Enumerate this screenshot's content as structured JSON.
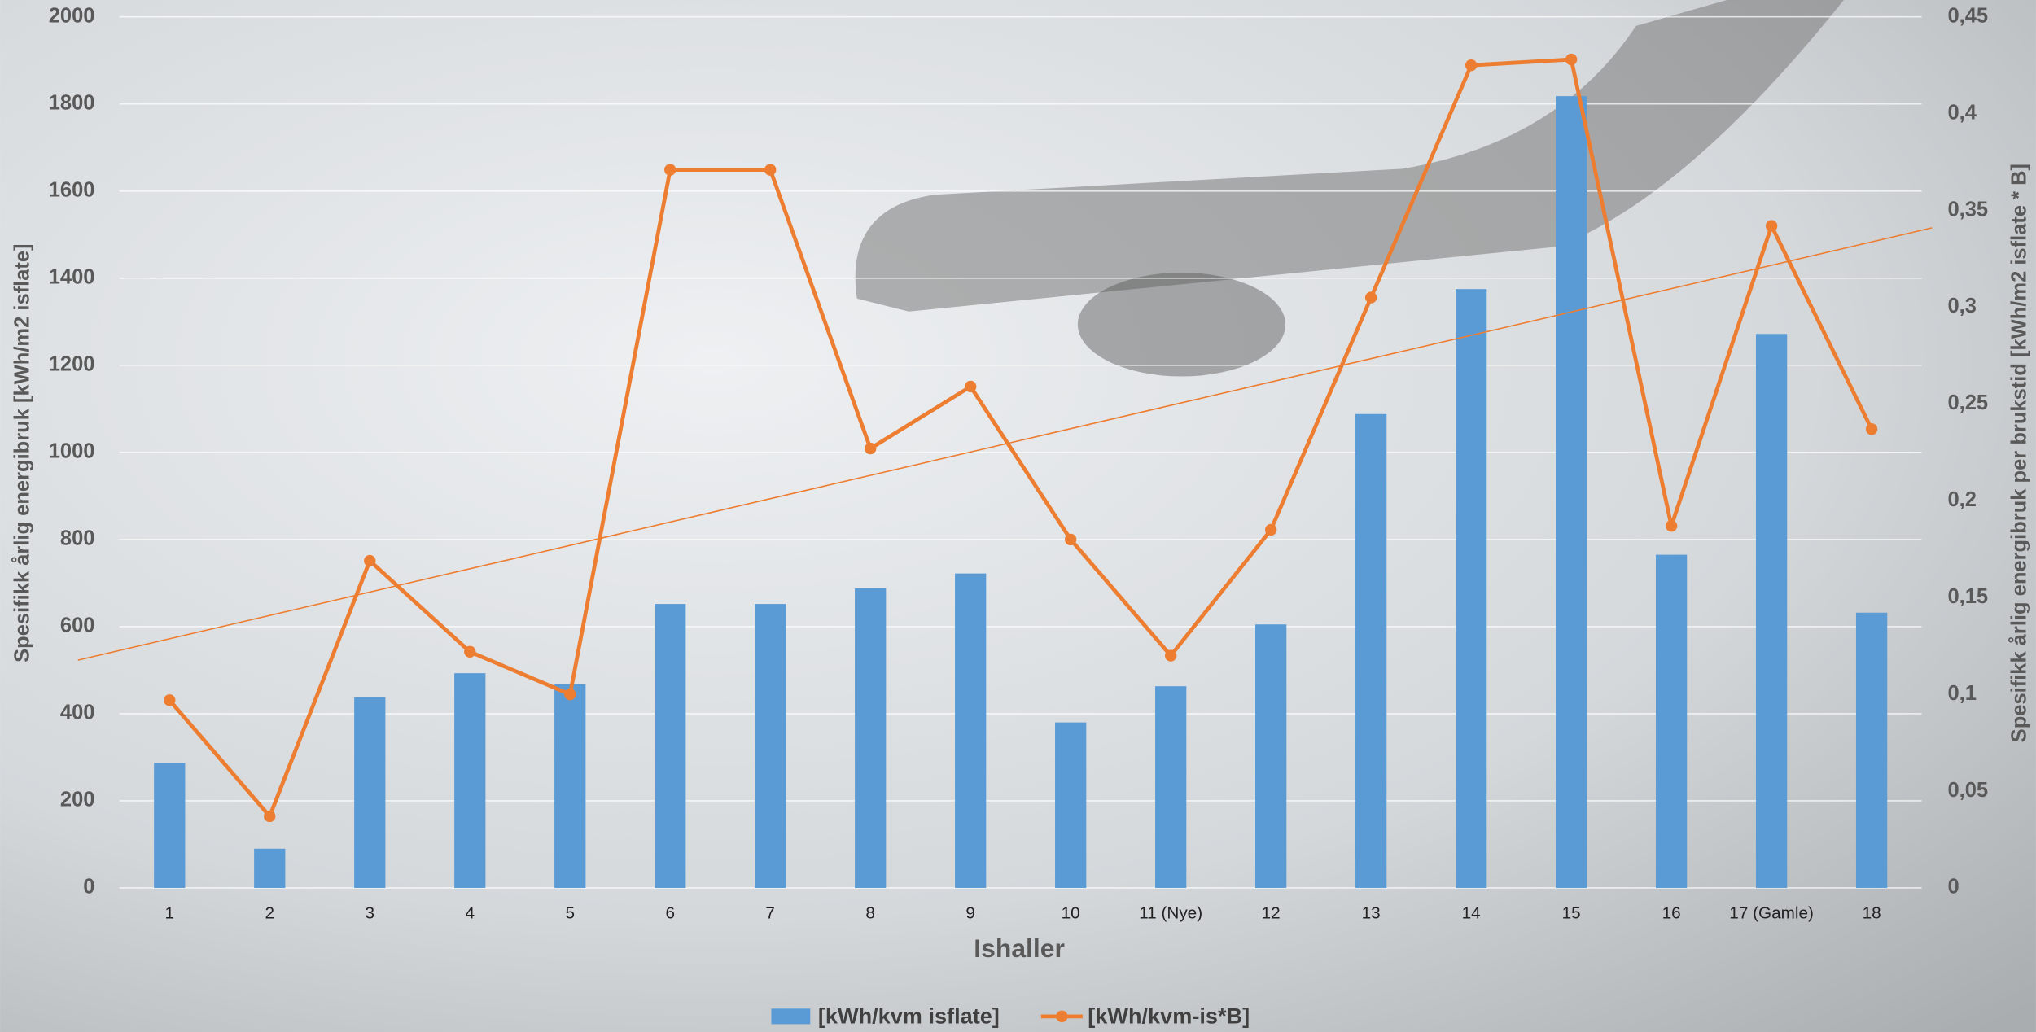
{
  "chart_data": {
    "type": "bar_line",
    "x_label": "Ishaller",
    "y_label": "Spesifikk årlig energibruk [kWh/m2 isflate]",
    "y2_label": "Spesifikk årlig energibruk per brukstid [kWh/m2 isflate * B]",
    "categories": [
      "1",
      "2",
      "3",
      "4",
      "5",
      "6",
      "7",
      "8",
      "9",
      "10",
      "11 (Nye)",
      "12",
      "13",
      "14",
      "15",
      "16",
      "17 (Gamle)",
      "18"
    ],
    "series": [
      {
        "name": "[kWh/kvm isflate]",
        "color": "#5b9bd5",
        "kind": "bar",
        "values": [
          287,
          90,
          438,
          493,
          468,
          652,
          652,
          688,
          722,
          380,
          463,
          605,
          1088,
          1375,
          1818,
          765,
          1272,
          632
        ]
      },
      {
        "name": "[kWh/kvm-is*B]",
        "color": "#ed7d31",
        "kind": "line",
        "axis": "y2",
        "trendline": true,
        "values": [
          0.097,
          0.037,
          0.169,
          0.122,
          0.1,
          0.371,
          0.371,
          0.227,
          0.259,
          0.18,
          0.12,
          0.185,
          0.305,
          0.425,
          0.428,
          0.187,
          0.342,
          0.237
        ]
      }
    ],
    "ylim": [
      0,
      2000
    ],
    "yticks": [
      0,
      200,
      400,
      600,
      800,
      1000,
      1200,
      1400,
      1600,
      1800,
      2000
    ],
    "y2lim": [
      0,
      0.45
    ],
    "y2ticks": [
      0,
      {
        "value": 0.05,
        "label": "0,05"
      },
      {
        "value": 0.1,
        "label": "0,1"
      },
      {
        "value": 0.15,
        "label": "0,15"
      },
      {
        "value": 0.2,
        "label": "0,2"
      },
      {
        "value": 0.25,
        "label": "0,25"
      },
      {
        "value": 0.3,
        "label": "0,3"
      },
      {
        "value": 0.35,
        "label": "0,35"
      },
      {
        "value": 0.4,
        "label": "0,4"
      },
      {
        "value": 0.45,
        "label": "0,45"
      }
    ],
    "grid": true
  }
}
